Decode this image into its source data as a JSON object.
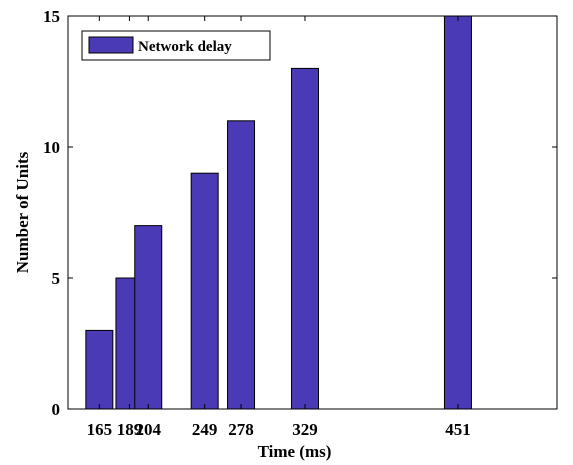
{
  "chart_data": {
    "type": "bar",
    "title": "",
    "xlabel": "Time (ms)",
    "ylabel": "Number of Units",
    "x": [
      165,
      189,
      204,
      249,
      278,
      329,
      451
    ],
    "x_tick_labels": [
      "165",
      "189",
      "204",
      "249",
      "278",
      "329",
      "451"
    ],
    "xlim": [
      140,
      530
    ],
    "ylim": [
      0,
      15
    ],
    "y_ticks": [
      0,
      5,
      10,
      15
    ],
    "series": [
      {
        "name": "Network delay",
        "values": [
          3,
          5,
          7,
          9,
          11,
          13,
          15
        ]
      }
    ],
    "legend_position": "top-left",
    "grid": false,
    "bar_color": "#4a3ab5"
  }
}
